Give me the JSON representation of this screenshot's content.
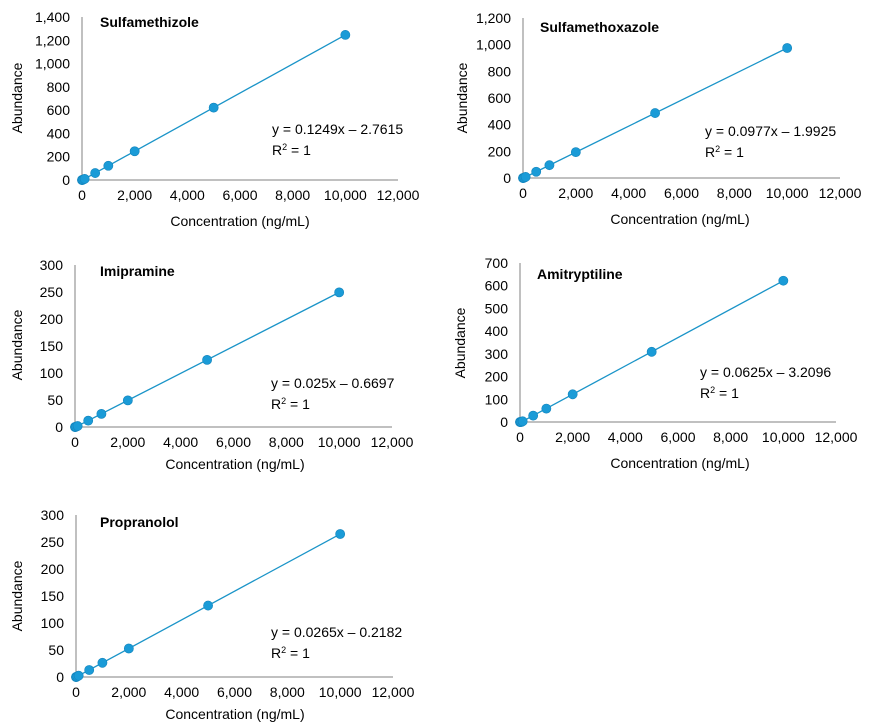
{
  "chart_data": [
    {
      "type": "scatter",
      "title": "Sulfamethizole",
      "xlabel": "Concentration (ng/mL)",
      "ylabel": "Abundance",
      "xlim": [
        0,
        12000
      ],
      "ylim": [
        0,
        1400
      ],
      "xticks": [
        0,
        2000,
        4000,
        6000,
        8000,
        10000,
        12000
      ],
      "xtick_labels": [
        "0",
        "2,000",
        "4,000",
        "6,000",
        "8,000",
        "10,000",
        "12,000"
      ],
      "yticks": [
        0,
        200,
        400,
        600,
        800,
        1000,
        1200,
        1400
      ],
      "ytick_labels": [
        "0",
        "200",
        "400",
        "600",
        "800",
        "1,000",
        "1,200",
        "1,400"
      ],
      "x": [
        1,
        5,
        10,
        50,
        100,
        500,
        1000,
        2000,
        5000,
        10000
      ],
      "y": [
        0.1,
        0,
        0.5,
        3.5,
        9.7,
        59.7,
        122.1,
        247.0,
        621.7,
        1246.2
      ],
      "fit": {
        "slope": 0.1249,
        "intercept": -2.7615
      },
      "equation": "y = 0.1249x – 2.7615",
      "r2_label": "R",
      "r2_value": " = 1",
      "grid": false
    },
    {
      "type": "scatter",
      "title": "Sulfamethoxazole",
      "xlabel": "Concentration (ng/mL)",
      "ylabel": "Abundance",
      "xlim": [
        0,
        12000
      ],
      "ylim": [
        0,
        1200
      ],
      "xticks": [
        0,
        2000,
        4000,
        6000,
        8000,
        10000,
        12000
      ],
      "xtick_labels": [
        "0",
        "2,000",
        "4,000",
        "6,000",
        "8,000",
        "10,000",
        "12,000"
      ],
      "yticks": [
        0,
        200,
        400,
        600,
        800,
        1000,
        1200
      ],
      "ytick_labels": [
        "0",
        "200",
        "400",
        "600",
        "800",
        "1,000",
        "1,200"
      ],
      "x": [
        1,
        5,
        10,
        50,
        100,
        500,
        1000,
        2000,
        5000,
        10000
      ],
      "y": [
        0,
        0,
        0,
        3,
        8,
        47,
        96,
        194,
        487,
        975
      ],
      "fit": {
        "slope": 0.0977,
        "intercept": -1.9925
      },
      "equation": "y = 0.0977x – 1.9925",
      "r2_label": "R",
      "r2_value": " = 1",
      "grid": false
    },
    {
      "type": "scatter",
      "title": "Imipramine",
      "xlabel": "Concentration (ng/mL)",
      "ylabel": "Abundance",
      "xlim": [
        0,
        12000
      ],
      "ylim": [
        0,
        300
      ],
      "xticks": [
        0,
        2000,
        4000,
        6000,
        8000,
        10000,
        12000
      ],
      "xtick_labels": [
        "0",
        "2,000",
        "4,000",
        "6,000",
        "8,000",
        "10,000",
        "12,000"
      ],
      "yticks": [
        0,
        50,
        100,
        150,
        200,
        250,
        300
      ],
      "ytick_labels": [
        "0",
        "50",
        "100",
        "150",
        "200",
        "250",
        "300"
      ],
      "x": [
        1,
        5,
        10,
        50,
        100,
        500,
        1000,
        2000,
        5000,
        10000
      ],
      "y": [
        0,
        0,
        0,
        0.6,
        1.8,
        11.8,
        24.3,
        49.3,
        124.3,
        249.3
      ],
      "fit": {
        "slope": 0.025,
        "intercept": -0.6697
      },
      "equation": "y = 0.025x – 0.6697",
      "r2_label": "R",
      "r2_value": " = 1",
      "grid": false
    },
    {
      "type": "scatter",
      "title": "Amitryptiline",
      "xlabel": "Concentration (ng/mL)",
      "ylabel": "Abundance",
      "xlim": [
        0,
        12000
      ],
      "ylim": [
        0,
        700
      ],
      "xticks": [
        0,
        2000,
        4000,
        6000,
        8000,
        10000,
        12000
      ],
      "xtick_labels": [
        "0",
        "2,000",
        "4,000",
        "6,000",
        "8,000",
        "10,000",
        "12,000"
      ],
      "yticks": [
        0,
        100,
        200,
        300,
        400,
        500,
        600,
        700
      ],
      "ytick_labels": [
        "0",
        "100",
        "200",
        "300",
        "400",
        "500",
        "600",
        "700"
      ],
      "x": [
        1,
        5,
        10,
        50,
        100,
        500,
        1000,
        2000,
        5000,
        10000
      ],
      "y": [
        0,
        0,
        0,
        0,
        3,
        28,
        59,
        122,
        309,
        622
      ],
      "fit": {
        "slope": 0.0625,
        "intercept": -3.2096
      },
      "equation": "y = 0.0625x – 3.2096",
      "r2_label": "R",
      "r2_value": " = 1",
      "grid": false
    },
    {
      "type": "scatter",
      "title": "Propranolol",
      "xlabel": "Concentration (ng/mL)",
      "ylabel": "Abundance",
      "xlim": [
        0,
        12000
      ],
      "ylim": [
        0,
        300
      ],
      "xticks": [
        0,
        2000,
        4000,
        6000,
        8000,
        10000,
        12000
      ],
      "xtick_labels": [
        "0",
        "2,000",
        "4,000",
        "6,000",
        "8,000",
        "10,000",
        "12,000"
      ],
      "yticks": [
        0,
        50,
        100,
        150,
        200,
        250,
        300
      ],
      "ytick_labels": [
        "0",
        "50",
        "100",
        "150",
        "200",
        "250",
        "300"
      ],
      "x": [
        1,
        5,
        10,
        50,
        100,
        500,
        1000,
        2000,
        5000,
        10000
      ],
      "y": [
        0,
        0,
        0.1,
        1.1,
        2.4,
        13.0,
        26.3,
        52.8,
        132.3,
        264.8
      ],
      "fit": {
        "slope": 0.0265,
        "intercept": -0.2182
      },
      "equation": "y = 0.0265x – 0.2182",
      "r2_label": "R",
      "r2_value": " = 1",
      "grid": false
    }
  ],
  "colors": {
    "point": "#1a9bd7",
    "line": "#1a94c8",
    "axis": "#808080"
  }
}
